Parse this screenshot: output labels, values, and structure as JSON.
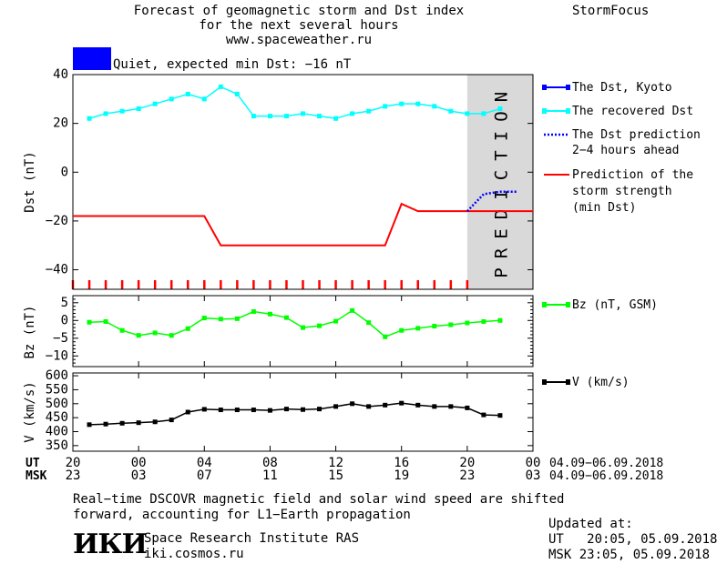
{
  "header": {
    "title_lines": [
      "Forecast of geomagnetic storm and Dst index",
      "for the next several hours",
      "www.spaceweather.ru"
    ],
    "brand": "StormFocus",
    "status_color": "#0000ff",
    "status_text": "Quiet, expected min Dst: −16 nT"
  },
  "colors": {
    "dst_kyoto": "#0000ff",
    "recovered_dst": "#00ffff",
    "dst_prediction": "#0000ff",
    "storm_strength": "#ff0000",
    "bz": "#00ff00",
    "v": "#000000",
    "prediction_zone": "#d9d9d9",
    "ticks": "#ff0000"
  },
  "legend": {
    "dst_kyoto": "The Dst, Kyoto",
    "recovered": "The recovered Dst",
    "prediction_lines": [
      "The Dst prediction",
      "2−4 hours ahead"
    ],
    "strength_lines": [
      "Prediction of the",
      "storm strength",
      "(min Dst)"
    ],
    "bz": "Bz (nT, GSM)",
    "v": "V (km/s)"
  },
  "prediction_label": "PREDICTION",
  "time_axis": {
    "ut_label": "UT",
    "msk_label": "MSK",
    "ut_ticks": [
      "20",
      "00",
      "04",
      "08",
      "12",
      "16",
      "20",
      "00"
    ],
    "msk_ticks": [
      "23",
      "03",
      "07",
      "11",
      "15",
      "19",
      "23",
      "03"
    ],
    "date_range": "04.09−06.09.2018"
  },
  "chart_data": [
    {
      "type": "line",
      "panel": "dst",
      "ylabel": "Dst (nT)",
      "ylim": [
        -48,
        40
      ],
      "yticks": [
        40,
        20,
        0,
        -20,
        -40
      ],
      "x_unit": "hours since 20 UT 04.09.2018",
      "prediction_zone": [
        24,
        28
      ],
      "series": [
        {
          "name": "The recovered Dst",
          "x": [
            1,
            2,
            3,
            4,
            5,
            6,
            7,
            8,
            9,
            10,
            11,
            12,
            13,
            14,
            15,
            16,
            17,
            18,
            19,
            20,
            21,
            22,
            23,
            24,
            25,
            26
          ],
          "values": [
            22,
            24,
            25,
            26,
            28,
            30,
            32,
            30,
            35,
            32,
            23,
            23,
            23,
            24,
            23,
            22,
            24,
            25,
            27,
            28,
            28,
            27,
            25,
            24,
            24,
            26
          ]
        },
        {
          "name": "The Dst prediction 2−4 hours ahead",
          "x": [
            24,
            25,
            26,
            27
          ],
          "values": [
            -16,
            -9,
            -8,
            -8
          ]
        },
        {
          "name": "Prediction of the storm strength (min Dst)",
          "x": [
            0,
            8,
            9,
            19,
            20,
            21,
            24,
            28
          ],
          "values": [
            -18,
            -18,
            -30,
            -30,
            -13,
            -16,
            -16,
            -16
          ]
        }
      ]
    },
    {
      "type": "line",
      "panel": "bz",
      "ylabel": "Bz (nT)",
      "ylim": [
        -13,
        7
      ],
      "yticks": [
        5,
        0,
        -5,
        -10
      ],
      "series": [
        {
          "name": "Bz (nT, GSM)",
          "x": [
            1,
            2,
            3,
            4,
            5,
            6,
            7,
            8,
            9,
            10,
            11,
            12,
            13,
            14,
            15,
            16,
            17,
            18,
            19,
            20,
            21,
            22,
            23,
            24,
            25,
            26
          ],
          "values": [
            -0.5,
            -0.3,
            -2.8,
            -4.2,
            -3.5,
            -4.2,
            -2.3,
            0.7,
            0.4,
            0.5,
            2.5,
            1.8,
            0.8,
            -2,
            -1.5,
            -0.2,
            2.8,
            -0.6,
            -4.6,
            -2.8,
            -2.2,
            -1.6,
            -1.2,
            -0.7,
            -0.3,
            0
          ]
        }
      ]
    },
    {
      "type": "line",
      "panel": "v",
      "ylabel": "V (km/s)",
      "ylim": [
        330,
        610
      ],
      "yticks": [
        600,
        550,
        500,
        450,
        400,
        350
      ],
      "series": [
        {
          "name": "V (km/s)",
          "x": [
            1,
            2,
            3,
            4,
            5,
            6,
            7,
            8,
            9,
            10,
            11,
            12,
            13,
            14,
            15,
            16,
            17,
            18,
            19,
            20,
            21,
            22,
            23,
            24,
            25,
            26
          ],
          "values": [
            425,
            427,
            430,
            432,
            435,
            442,
            470,
            480,
            478,
            478,
            478,
            476,
            481,
            479,
            481,
            490,
            500,
            490,
            495,
            502,
            495,
            490,
            490,
            485,
            460,
            458
          ]
        }
      ]
    }
  ],
  "footer": {
    "note_lines": [
      "Real−time DSCOVR magnetic field and solar wind speed are shifted",
      "forward, accounting for L1−Earth propagation"
    ],
    "logo": "ИКИ",
    "org": "Space Research Institute RAS",
    "site": "iki.cosmos.ru",
    "updated_label": "Updated at:",
    "updated_ut": "UT   20:05, 05.09.2018",
    "updated_msk": "MSK 23:05, 05.09.2018"
  }
}
